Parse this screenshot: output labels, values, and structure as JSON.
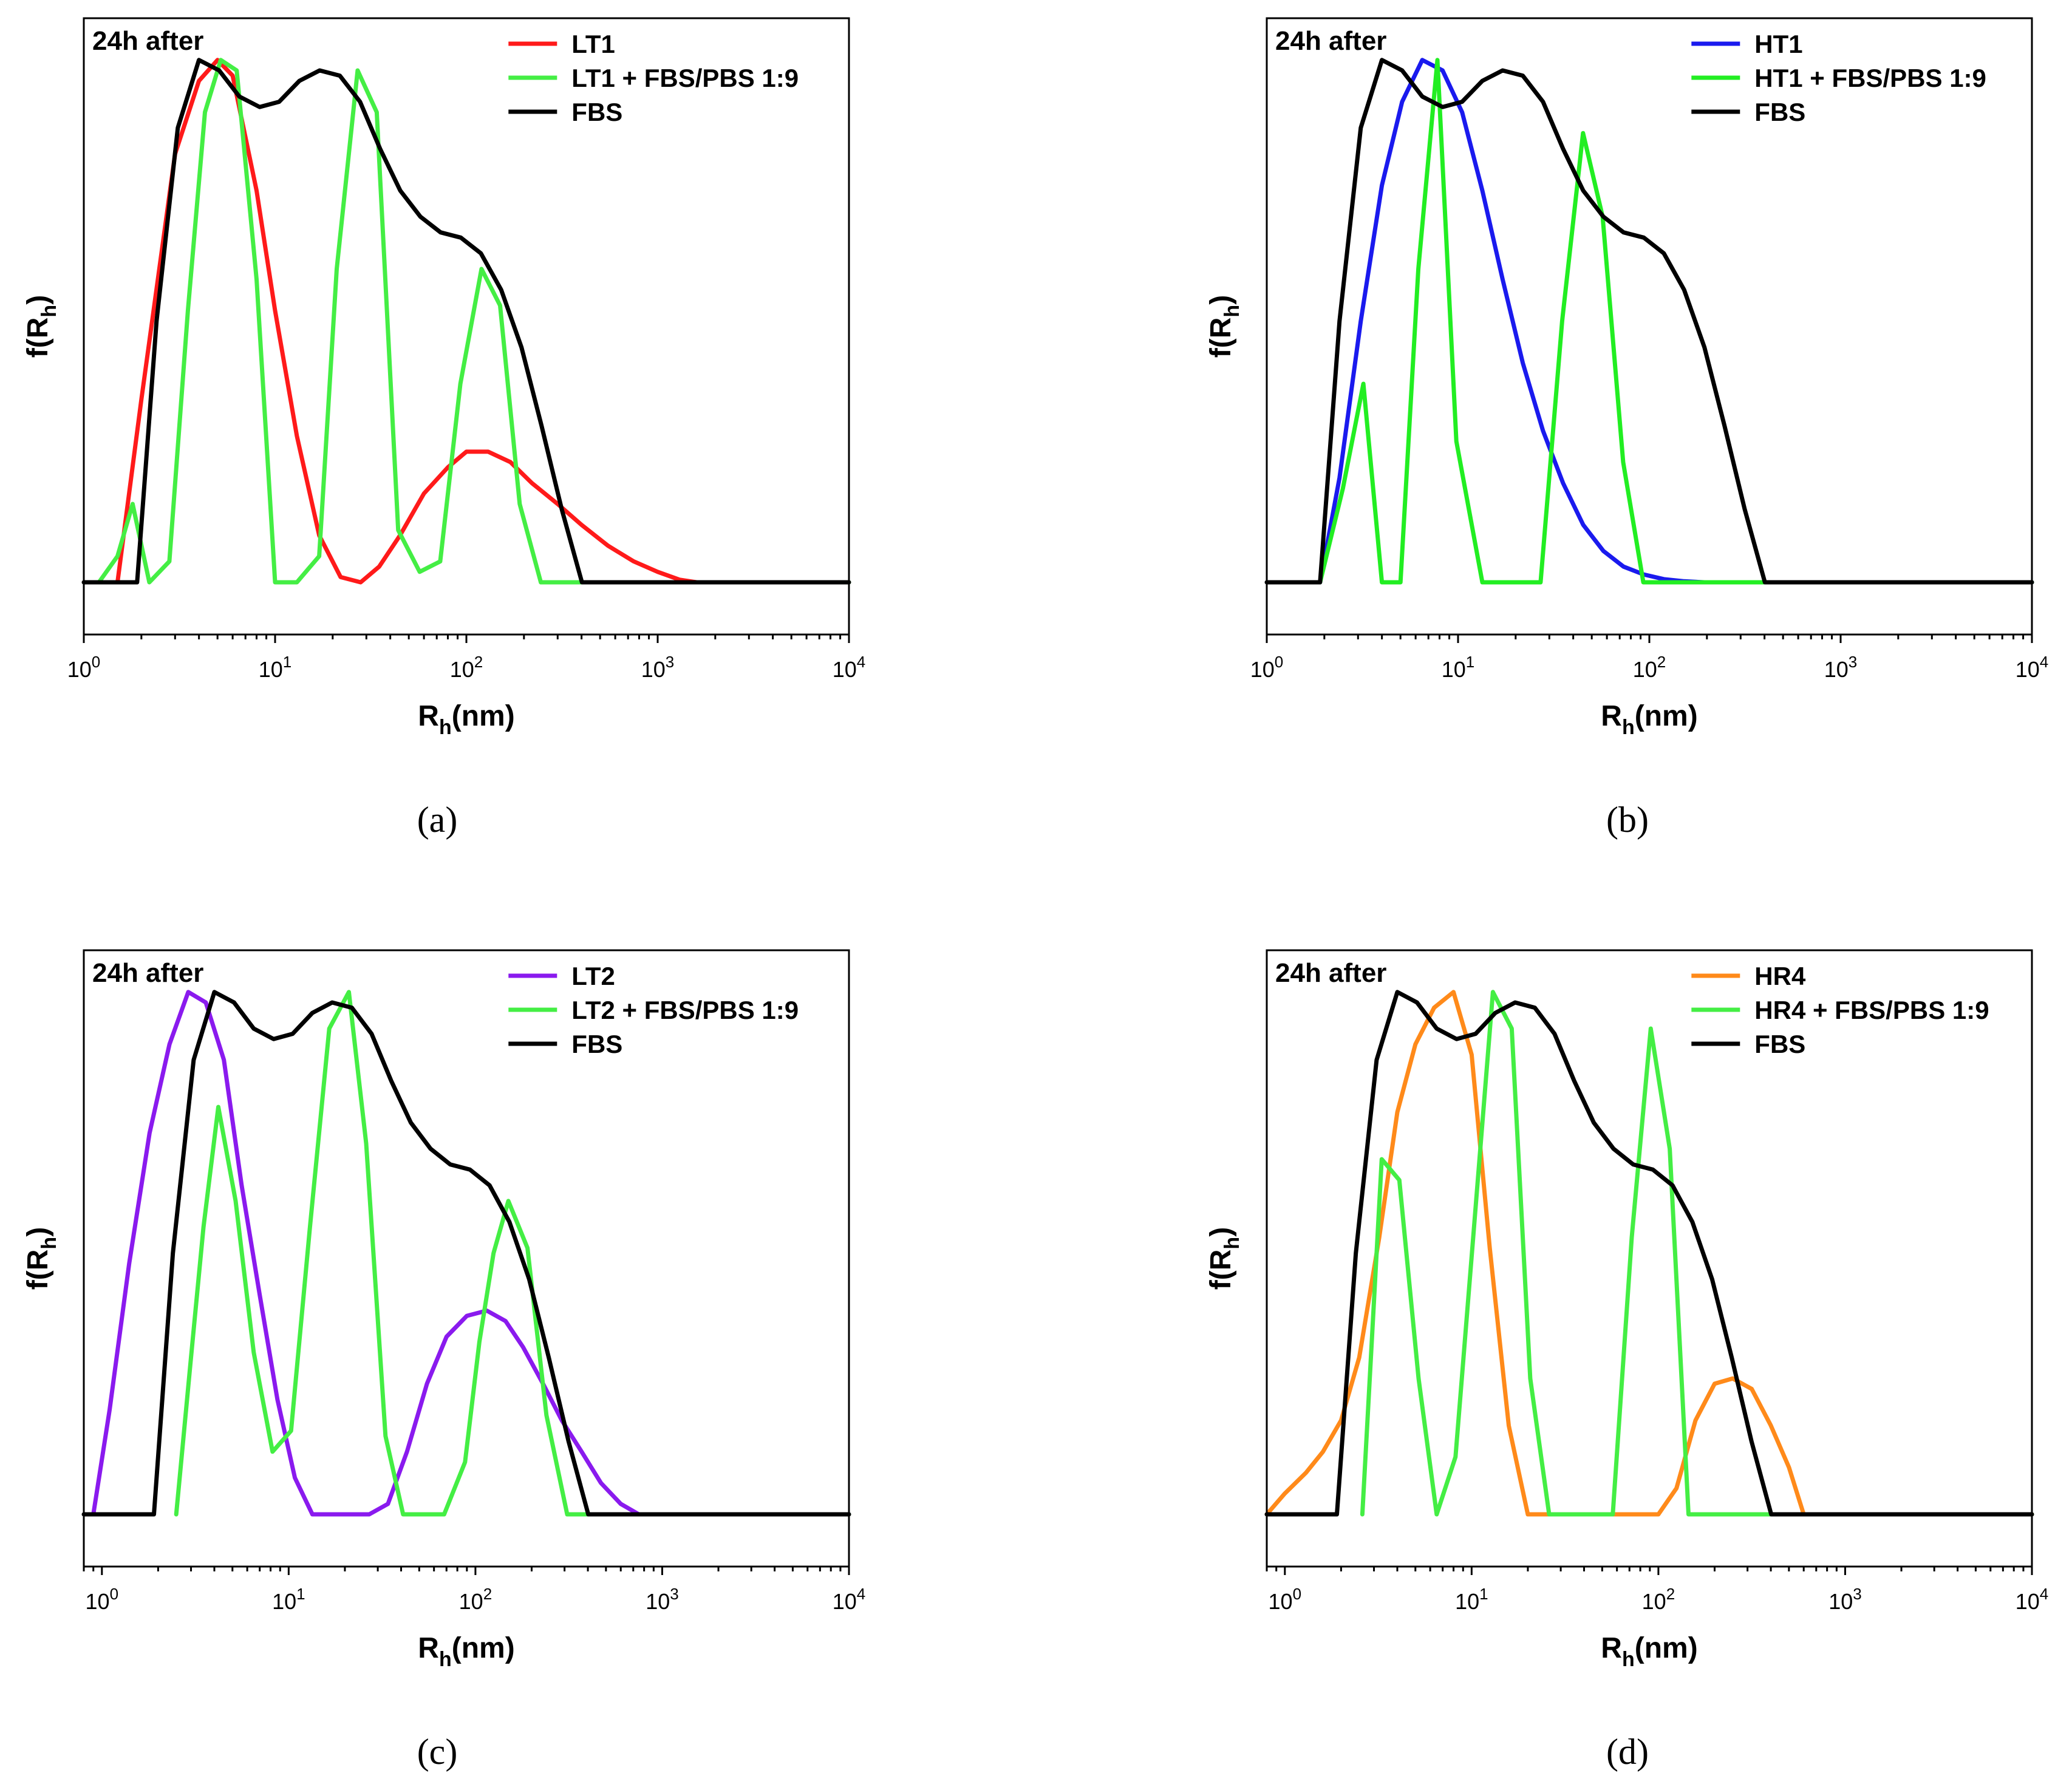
{
  "chart_data": [
    {
      "type": "line",
      "panel_label": "(a)",
      "title": "24h after",
      "xlabel_main": "R",
      "xlabel_sub": "h",
      "xlabel_tail": "(nm)",
      "ylabel_main": "f(R",
      "ylabel_sub": "h",
      "ylabel_tail": ")",
      "xscale": "log",
      "xlim": [
        1,
        10000
      ],
      "ylim": [
        -0.1,
        1.08
      ],
      "x_tick_labels": [
        {
          "base": "10",
          "exp": "0"
        },
        {
          "base": "10",
          "exp": "1"
        },
        {
          "base": "10",
          "exp": "2"
        },
        {
          "base": "10",
          "exp": "3"
        },
        {
          "base": "10",
          "exp": "4"
        }
      ],
      "legend_position": "top-right",
      "series": [
        {
          "name": "LT1",
          "color": "#ff1a1a",
          "x": [
            1.5,
            2,
            3,
            4,
            5,
            6,
            8,
            10,
            13,
            17,
            22,
            28,
            35,
            45,
            60,
            80,
            100,
            130,
            170,
            220,
            300,
            400,
            550,
            750,
            1000,
            1300,
            1600
          ],
          "y": [
            0.0,
            0.35,
            0.82,
            0.96,
            1.0,
            0.97,
            0.75,
            0.52,
            0.28,
            0.09,
            0.01,
            0.0,
            0.03,
            0.09,
            0.17,
            0.22,
            0.25,
            0.25,
            0.23,
            0.19,
            0.15,
            0.11,
            0.07,
            0.04,
            0.02,
            0.005,
            0.0
          ]
        },
        {
          "name": "LT1 + FBS/PBS 1:9",
          "color": "#44ee44",
          "x": [
            1.2,
            1.5,
            1.8,
            2.2,
            2.8,
            3.5,
            4.3,
            5.2,
            6.3,
            8,
            10,
            13,
            17,
            21,
            27,
            34,
            44,
            57,
            73,
            93,
            120,
            150,
            190,
            245,
            310,
            400,
            10000
          ],
          "y": [
            0.0,
            0.05,
            0.15,
            0.0,
            0.04,
            0.52,
            0.9,
            1.0,
            0.98,
            0.58,
            0.0,
            0.0,
            0.05,
            0.6,
            0.98,
            0.9,
            0.1,
            0.02,
            0.04,
            0.38,
            0.6,
            0.53,
            0.15,
            0.0,
            0.0,
            0.0,
            0.0
          ],
          "_draw_order": 2
        },
        {
          "name": "FBS",
          "color": "#000000",
          "x": [
            1.0,
            1.9,
            2.4,
            3.1,
            4.0,
            5.1,
            6.5,
            8.3,
            10.5,
            13.4,
            17.1,
            21.8,
            27.8,
            35.4,
            45.1,
            57.5,
            73.3,
            93.5,
            119,
            152,
            194,
            247,
            315,
            402,
            10000
          ],
          "y": [
            0.0,
            0.0,
            0.5,
            0.87,
            1.0,
            0.98,
            0.93,
            0.91,
            0.92,
            0.96,
            0.98,
            0.97,
            0.92,
            0.83,
            0.75,
            0.7,
            0.67,
            0.66,
            0.63,
            0.56,
            0.45,
            0.3,
            0.14,
            0.0,
            0.0
          ]
        }
      ]
    },
    {
      "type": "line",
      "panel_label": "(b)",
      "title": "24h after",
      "xlabel_main": "R",
      "xlabel_sub": "h",
      "xlabel_tail": "(nm)",
      "ylabel_main": "f(R",
      "ylabel_sub": "h",
      "ylabel_tail": ")",
      "xscale": "log",
      "xlim": [
        1,
        10000
      ],
      "ylim": [
        -0.1,
        1.08
      ],
      "x_tick_labels": [
        {
          "base": "10",
          "exp": "0"
        },
        {
          "base": "10",
          "exp": "1"
        },
        {
          "base": "10",
          "exp": "2"
        },
        {
          "base": "10",
          "exp": "3"
        },
        {
          "base": "10",
          "exp": "4"
        }
      ],
      "legend_position": "top-right",
      "series": [
        {
          "name": "HT1",
          "color": "#1a1aee",
          "x": [
            1.9,
            2.4,
            3.1,
            4.0,
            5.1,
            6.5,
            8.3,
            10.5,
            13.4,
            17.1,
            21.8,
            27.8,
            35.4,
            45.1,
            57.5,
            73.3,
            93.5,
            119,
            152,
            194,
            10000
          ],
          "y": [
            0.0,
            0.2,
            0.5,
            0.76,
            0.92,
            1.0,
            0.98,
            0.9,
            0.75,
            0.58,
            0.42,
            0.29,
            0.19,
            0.11,
            0.06,
            0.03,
            0.015,
            0.006,
            0.002,
            0.0,
            0.0
          ]
        },
        {
          "name": "HT1 + FBS/PBS 1:9",
          "color": "#22ee22",
          "x": [
            1.9,
            2.5,
            3.2,
            4.0,
            5.0,
            6.2,
            7.8,
            9.8,
            13.4,
            27,
            35,
            45,
            57,
            73,
            93,
            10000
          ],
          "y": [
            0.0,
            0.18,
            0.38,
            0.0,
            0.0,
            0.6,
            1.0,
            0.27,
            0.0,
            0.0,
            0.5,
            0.86,
            0.7,
            0.23,
            0.0,
            0.0
          ]
        },
        {
          "name": "FBS",
          "color": "#000000",
          "x": [
            1.0,
            1.9,
            2.4,
            3.1,
            4.0,
            5.1,
            6.5,
            8.3,
            10.5,
            13.4,
            17.1,
            21.8,
            27.8,
            35.4,
            45.1,
            57.5,
            73.3,
            93.5,
            119,
            152,
            194,
            247,
            315,
            402,
            10000
          ],
          "y": [
            0.0,
            0.0,
            0.5,
            0.87,
            1.0,
            0.98,
            0.93,
            0.91,
            0.92,
            0.96,
            0.98,
            0.97,
            0.92,
            0.83,
            0.75,
            0.7,
            0.67,
            0.66,
            0.63,
            0.56,
            0.45,
            0.3,
            0.14,
            0.0,
            0.0
          ]
        }
      ]
    },
    {
      "type": "line",
      "panel_label": "(c)",
      "title": "24h after",
      "xlabel_main": "R",
      "xlabel_sub": "h",
      "xlabel_tail": "(nm)",
      "ylabel_main": "f(R",
      "ylabel_sub": "h",
      "ylabel_tail": ")",
      "xscale": "log",
      "xlim": [
        0.8,
        10000
      ],
      "ylim": [
        -0.1,
        1.08
      ],
      "x_tick_labels": [
        {
          "base": "10",
          "exp": "0"
        },
        {
          "base": "10",
          "exp": "1"
        },
        {
          "base": "10",
          "exp": "2"
        },
        {
          "base": "10",
          "exp": "3"
        },
        {
          "base": "10",
          "exp": "4"
        }
      ],
      "legend_position": "top-right",
      "series": [
        {
          "name": "LT2",
          "color": "#8a1aee",
          "x": [
            0.9,
            1.1,
            1.4,
            1.8,
            2.3,
            2.9,
            3.6,
            4.5,
            5.6,
            7.0,
            8.7,
            10.8,
            13.4,
            27,
            34,
            43,
            55,
            70,
            90,
            115,
            145,
            180,
            230,
            290,
            370,
            470,
            600,
            750,
            10000
          ],
          "y": [
            0.0,
            0.2,
            0.48,
            0.73,
            0.9,
            1.0,
            0.98,
            0.87,
            0.63,
            0.42,
            0.22,
            0.07,
            0.0,
            0.0,
            0.02,
            0.12,
            0.25,
            0.34,
            0.38,
            0.39,
            0.37,
            0.32,
            0.25,
            0.18,
            0.12,
            0.06,
            0.02,
            0.0,
            0.0
          ]
        },
        {
          "name": "LT2 + FBS/PBS 1:9",
          "color": "#44ee44",
          "x": [
            2.5,
            3.0,
            3.5,
            4.2,
            5.2,
            6.5,
            8.2,
            10.3,
            13,
            16.5,
            21,
            26,
            33,
            41,
            52,
            68,
            88,
            105,
            125,
            150,
            190,
            240,
            310,
            10000
          ],
          "y": [
            0.0,
            0.3,
            0.55,
            0.78,
            0.6,
            0.31,
            0.12,
            0.16,
            0.55,
            0.93,
            1.0,
            0.71,
            0.15,
            0.0,
            0.0,
            0.0,
            0.1,
            0.33,
            0.5,
            0.6,
            0.51,
            0.19,
            0.0,
            0.0
          ]
        },
        {
          "name": "FBS",
          "color": "#000000",
          "x": [
            0.8,
            1.9,
            2.4,
            3.1,
            4.0,
            5.1,
            6.5,
            8.3,
            10.5,
            13.4,
            17.1,
            21.8,
            27.8,
            35.4,
            45.1,
            57.5,
            73.3,
            93.5,
            119,
            152,
            194,
            247,
            315,
            402,
            10000
          ],
          "y": [
            0.0,
            0.0,
            0.5,
            0.87,
            1.0,
            0.98,
            0.93,
            0.91,
            0.92,
            0.96,
            0.98,
            0.97,
            0.92,
            0.83,
            0.75,
            0.7,
            0.67,
            0.66,
            0.63,
            0.56,
            0.45,
            0.3,
            0.14,
            0.0,
            0.0
          ]
        }
      ]
    },
    {
      "type": "line",
      "panel_label": "(d)",
      "title": "24h after",
      "xlabel_main": "R",
      "xlabel_sub": "h",
      "xlabel_tail": "(nm)",
      "ylabel_main": "f(R",
      "ylabel_sub": "h",
      "ylabel_tail": ")",
      "xscale": "log",
      "xlim": [
        0.8,
        10000
      ],
      "ylim": [
        -0.1,
        1.08
      ],
      "x_tick_labels": [
        {
          "base": "10",
          "exp": "0"
        },
        {
          "base": "10",
          "exp": "1"
        },
        {
          "base": "10",
          "exp": "2"
        },
        {
          "base": "10",
          "exp": "3"
        },
        {
          "base": "10",
          "exp": "4"
        }
      ],
      "legend_position": "top-right",
      "series": [
        {
          "name": "HR4",
          "color": "#ff8a1a",
          "x": [
            0.8,
            1.0,
            1.3,
            1.6,
            2.0,
            2.5,
            3.2,
            4.0,
            5.0,
            6.3,
            8.0,
            10.0,
            12.5,
            15.8,
            20,
            100,
            125,
            158,
            200,
            250,
            316,
            400,
            500,
            600,
            10000
          ],
          "y": [
            0.0,
            0.04,
            0.08,
            0.12,
            0.18,
            0.3,
            0.53,
            0.77,
            0.9,
            0.97,
            1.0,
            0.88,
            0.51,
            0.17,
            0.0,
            0.0,
            0.05,
            0.18,
            0.25,
            0.26,
            0.24,
            0.17,
            0.09,
            0.0,
            0.0
          ]
        },
        {
          "name": "HR4 + FBS/PBS 1:9",
          "color": "#44ee44",
          "x": [
            2.6,
            3.3,
            4.1,
            5.2,
            6.5,
            8.2,
            10.3,
            13,
            16.4,
            20.6,
            26,
            33,
            57,
            72,
            91,
            115,
            145,
            10000
          ],
          "y": [
            0.0,
            0.68,
            0.64,
            0.26,
            0.0,
            0.11,
            0.55,
            1.0,
            0.93,
            0.26,
            0.0,
            0.0,
            0.0,
            0.53,
            0.93,
            0.7,
            0.0,
            0.0
          ]
        },
        {
          "name": "FBS",
          "color": "#000000",
          "x": [
            0.8,
            1.9,
            2.4,
            3.1,
            4.0,
            5.1,
            6.5,
            8.3,
            10.5,
            13.4,
            17.1,
            21.8,
            27.8,
            35.4,
            45.1,
            57.5,
            73.3,
            93.5,
            119,
            152,
            194,
            247,
            315,
            402,
            10000
          ],
          "y": [
            0.0,
            0.0,
            0.5,
            0.87,
            1.0,
            0.98,
            0.93,
            0.91,
            0.92,
            0.96,
            0.98,
            0.97,
            0.92,
            0.83,
            0.75,
            0.7,
            0.67,
            0.66,
            0.63,
            0.56,
            0.45,
            0.3,
            0.14,
            0.0,
            0.0
          ]
        }
      ]
    }
  ]
}
